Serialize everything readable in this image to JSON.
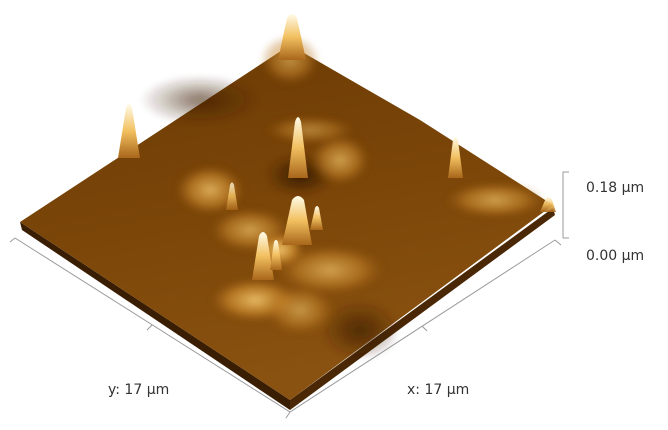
{
  "axes": {
    "y_label": "y: 17 µm",
    "x_label": "x: 17 µm",
    "z_ticks": [
      "0.18 µm",
      "0.00 µm"
    ]
  }
}
